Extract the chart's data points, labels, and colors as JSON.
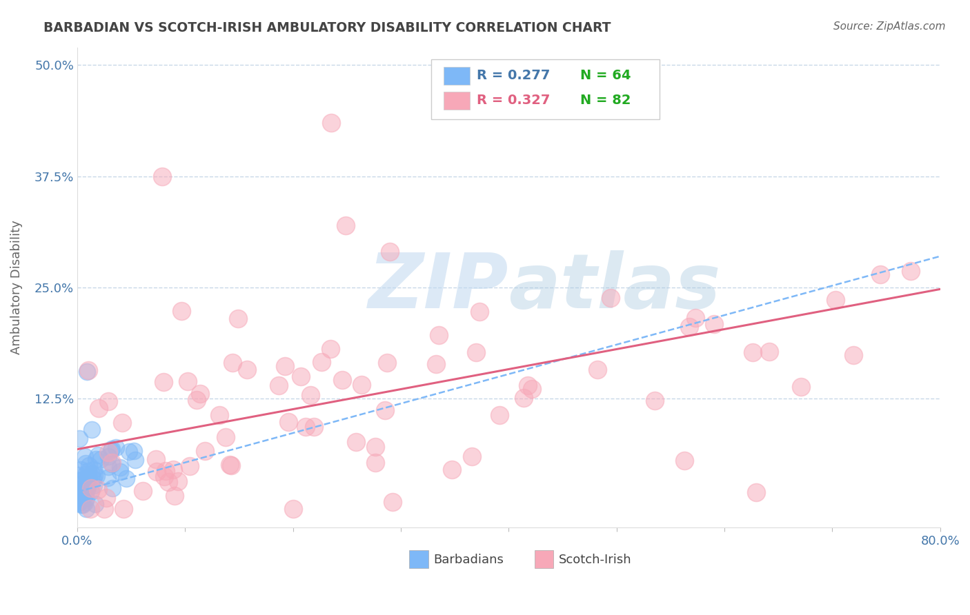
{
  "title": "BARBADIAN VS SCOTCH-IRISH AMBULATORY DISABILITY CORRELATION CHART",
  "source_text": "Source: ZipAtlas.com",
  "ylabel": "Ambulatory Disability",
  "xlim": [
    0.0,
    0.8
  ],
  "ylim": [
    -0.02,
    0.52
  ],
  "xticks": [
    0.0,
    0.1,
    0.2,
    0.3,
    0.4,
    0.5,
    0.6,
    0.7,
    0.8
  ],
  "xticklabels": [
    "0.0%",
    "",
    "",
    "",
    "",
    "",
    "",
    "",
    "80.0%"
  ],
  "yticks": [
    0.0,
    0.125,
    0.25,
    0.375,
    0.5
  ],
  "yticklabels": [
    "",
    "12.5%",
    "25.0%",
    "37.5%",
    "50.0%"
  ],
  "grid_color": "#c8d8e8",
  "barbadian_color": "#7eb8f7",
  "scotchirish_color": "#f7a8b8",
  "barbadian_N": 64,
  "scotchirish_N": 82,
  "legend_R_barbadian": "R = 0.277",
  "legend_N_barbadian": "N = 64",
  "legend_R_scotchirish": "R = 0.327",
  "legend_N_scotchirish": "N = 82",
  "watermark": "ZIPAtlas",
  "background_color": "#ffffff",
  "title_color": "#444444",
  "axis_color": "#4477aa",
  "barbadian_trend_color": "#7eb8f7",
  "scotchirish_trend_color": "#e06080",
  "barb_trend_start": 0.02,
  "barb_trend_end": 0.285,
  "si_trend_start": 0.068,
  "si_trend_end": 0.248
}
